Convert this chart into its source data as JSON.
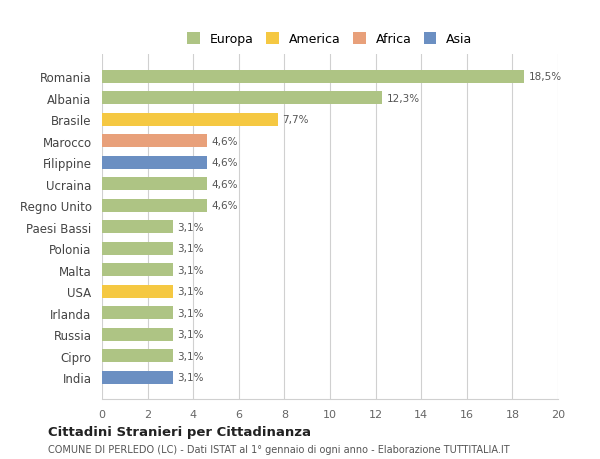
{
  "countries": [
    "Romania",
    "Albania",
    "Brasile",
    "Marocco",
    "Filippine",
    "Ucraina",
    "Regno Unito",
    "Paesi Bassi",
    "Polonia",
    "Malta",
    "USA",
    "Irlanda",
    "Russia",
    "Cipro",
    "India"
  ],
  "values": [
    18.5,
    12.3,
    7.7,
    4.6,
    4.6,
    4.6,
    4.6,
    3.1,
    3.1,
    3.1,
    3.1,
    3.1,
    3.1,
    3.1,
    3.1
  ],
  "labels": [
    "18,5%",
    "12,3%",
    "7,7%",
    "4,6%",
    "4,6%",
    "4,6%",
    "4,6%",
    "3,1%",
    "3,1%",
    "3,1%",
    "3,1%",
    "3,1%",
    "3,1%",
    "3,1%",
    "3,1%"
  ],
  "colors": [
    "#aec484",
    "#aec484",
    "#f5c842",
    "#e8a07a",
    "#6b8fc2",
    "#aec484",
    "#aec484",
    "#aec484",
    "#aec484",
    "#aec484",
    "#f5c842",
    "#aec484",
    "#aec484",
    "#aec484",
    "#6b8fc2"
  ],
  "legend_names": [
    "Europa",
    "America",
    "Africa",
    "Asia"
  ],
  "legend_colors": [
    "#aec484",
    "#f5c842",
    "#e8a07a",
    "#6b8fc2"
  ],
  "title": "Cittadini Stranieri per Cittadinanza",
  "subtitle": "COMUNE DI PERLEDO (LC) - Dati ISTAT al 1° gennaio di ogni anno - Elaborazione TUTTITALIA.IT",
  "xlim": [
    0,
    20
  ],
  "xticks": [
    0,
    2,
    4,
    6,
    8,
    10,
    12,
    14,
    16,
    18,
    20
  ],
  "background_color": "#ffffff",
  "grid_color": "#d0d0d0",
  "bar_height": 0.6
}
